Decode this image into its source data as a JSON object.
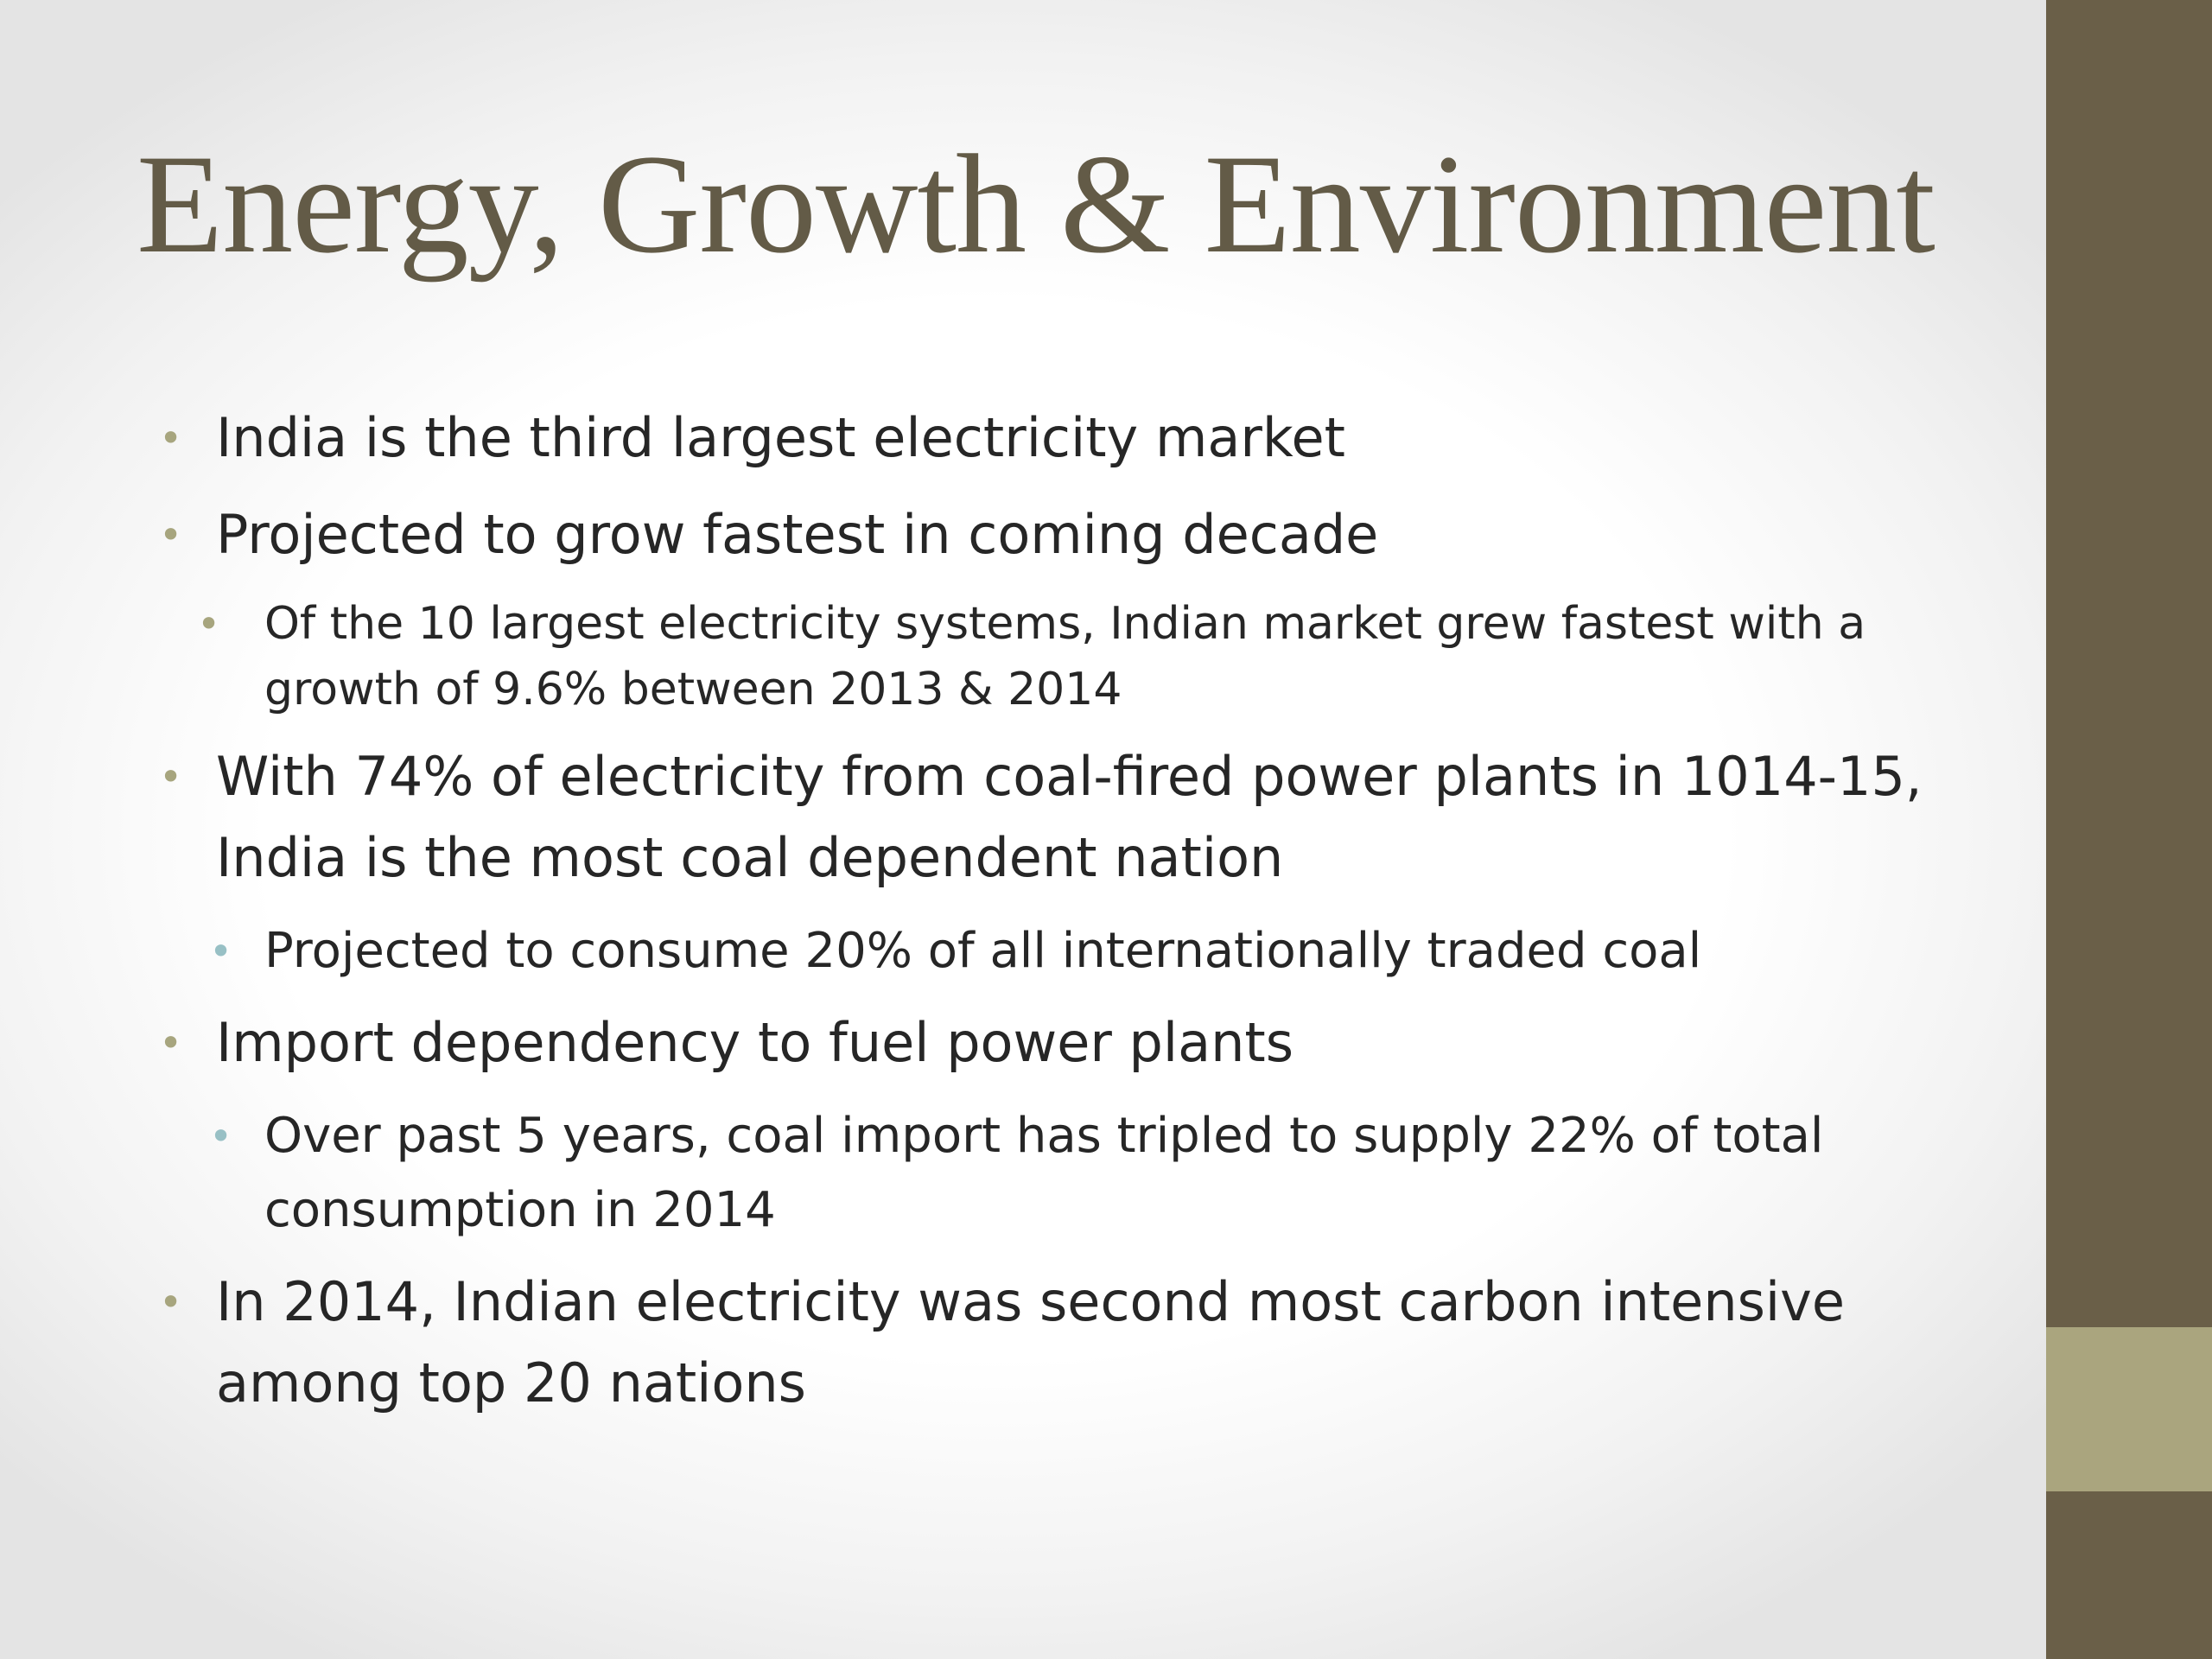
{
  "colors": {
    "title": "#635b47",
    "body_text": "#262626",
    "side_bar_dark": "#6a5f48",
    "side_bar_accent": "#aaa57e",
    "bullet_level1": "#a7a57e",
    "bullet_level2": "#98c0c5"
  },
  "slide": {
    "title": "Energy, Growth & Environment",
    "bullets": [
      {
        "text": "India is the third largest electricity market"
      },
      {
        "text": "Projected to grow fastest in coming decade"
      },
      {
        "text": "Of the 10 largest electricity systems, Indian market grew fastest with a growth of 9.6% between 2013 & 2014"
      },
      {
        "text": "With 74% of electricity from coal-fired power plants in 1014-15, India is the most coal dependent nation"
      },
      {
        "text": "Projected to consume 20% of all internationally traded coal"
      },
      {
        "text": "Import dependency to fuel power plants"
      },
      {
        "text": "Over past 5 years, coal import has tripled to supply 22% of total consumption in 2014"
      },
      {
        "text": "In 2014, Indian electricity was second most carbon intensive among top 20 nations"
      }
    ],
    "bullet_glyph": "•"
  }
}
